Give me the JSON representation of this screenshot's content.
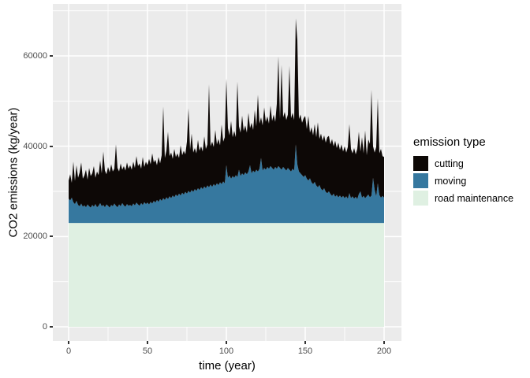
{
  "figure": {
    "background": "#ffffff"
  },
  "panel": {
    "background": "#ebebeb",
    "grid_color": "#ffffff"
  },
  "axes": {
    "x": {
      "title": "time (year)",
      "tick_labels": [
        "0",
        "50",
        "100",
        "150",
        "200"
      ],
      "tick_values": [
        0,
        50,
        100,
        150,
        200
      ],
      "minor_tick_values": [
        25,
        75,
        125,
        175
      ],
      "text_color": "#4d4d4d"
    },
    "y": {
      "title": "CO2 emissions (kg/year)",
      "tick_labels": [
        "0",
        "20000",
        "40000",
        "60000"
      ],
      "tick_values": [
        0,
        20000,
        40000,
        60000
      ],
      "minor_tick_values": [
        10000,
        30000,
        50000,
        70000
      ],
      "text_color": "#4d4d4d"
    }
  },
  "legend": {
    "title": "emission type",
    "entries": [
      {
        "label": "cutting",
        "color": "#0d0806"
      },
      {
        "label": "moving",
        "color": "#36789f"
      },
      {
        "label": "road maintenance",
        "color": "#dff0e2"
      }
    ]
  },
  "chart_data": {
    "type": "area",
    "stacked": true,
    "title": "",
    "xlabel": "time (year)",
    "ylabel": "CO2 emissions (kg/year)",
    "units": "kg/year",
    "grid": true,
    "legend_position": "right",
    "xlim": [
      -10,
      211
    ],
    "ylim": [
      -3500,
      71800
    ],
    "x_start": 0,
    "x_step": 1,
    "x_end": 200,
    "series_order_top_to_bottom": [
      "cutting",
      "moving",
      "road maintenance"
    ],
    "note": "Values are stacked cumulative tops in kg/year read from the plot: road maintenance spans 0..23000 (constant); moving spans 23000..moving_top[t]; cutting spans moving_top[t]..cutting_top[t]. Max total ~68300 at t=144.",
    "road_maintenance_top": 23000,
    "moving_top": [
      28400,
      28000,
      28600,
      27600,
      27200,
      27900,
      27000,
      26700,
      27300,
      26600,
      26900,
      26500,
      27100,
      26700,
      26400,
      27000,
      26600,
      27200,
      26500,
      26800,
      27400,
      26700,
      27000,
      26500,
      27100,
      26800,
      26400,
      27000,
      26700,
      27300,
      26800,
      26500,
      27100,
      26700,
      27400,
      26900,
      26600,
      27200,
      26800,
      27000,
      26700,
      27300,
      26900,
      27500,
      27100,
      26800,
      27400,
      27000,
      27600,
      27200,
      27500,
      27100,
      27700,
      27300,
      27900,
      27500,
      28100,
      27700,
      28300,
      27900,
      28500,
      28100,
      28700,
      28300,
      28900,
      28500,
      29100,
      28700,
      29300,
      28900,
      29500,
      29100,
      29700,
      29300,
      29900,
      29500,
      30100,
      29700,
      30300,
      29900,
      30500,
      30100,
      30700,
      30300,
      30900,
      30500,
      31100,
      30700,
      31300,
      30900,
      31500,
      31000,
      31600,
      31200,
      31800,
      31400,
      32000,
      31600,
      32200,
      31800,
      35800,
      33000,
      33500,
      32800,
      33400,
      33000,
      33600,
      33200,
      34800,
      33400,
      34000,
      33600,
      34200,
      33800,
      34400,
      35800,
      34000,
      34600,
      34200,
      34800,
      34400,
      35000,
      37400,
      34600,
      35200,
      34800,
      35400,
      35000,
      35600,
      35200,
      34800,
      35400,
      35000,
      35600,
      35200,
      34800,
      35400,
      35000,
      34600,
      35200,
      34800,
      34400,
      35000,
      34600,
      40400,
      36000,
      34400,
      34000,
      33600,
      33200,
      33600,
      32800,
      32400,
      32900,
      32000,
      31600,
      32100,
      31300,
      30900,
      31400,
      30600,
      30200,
      30700,
      29900,
      29600,
      30000,
      29400,
      29000,
      29500,
      28800,
      29200,
      28700,
      29100,
      28600,
      29000,
      28500,
      28900,
      28400,
      29600,
      28500,
      28900,
      28400,
      28800,
      28300,
      29400,
      30000,
      28600,
      29000,
      28500,
      28900,
      29300,
      28700,
      29100,
      33000,
      30400,
      28900,
      31800,
      29200,
      28600,
      29000,
      28600
    ],
    "cutting_top": [
      32400,
      33800,
      31900,
      36600,
      32300,
      35800,
      33000,
      34200,
      36400,
      32800,
      33500,
      34800,
      32600,
      35200,
      33400,
      34000,
      35600,
      33000,
      34400,
      33600,
      36800,
      34000,
      38800,
      34600,
      33800,
      35400,
      34200,
      36000,
      34400,
      35000,
      40400,
      35200,
      34400,
      36200,
      34800,
      35600,
      34600,
      36400,
      35000,
      35800,
      34800,
      36600,
      35200,
      37800,
      35600,
      36200,
      35000,
      37600,
      35400,
      36600,
      35800,
      37200,
      36000,
      38400,
      36400,
      37000,
      35800,
      37600,
      36200,
      38000,
      48800,
      37400,
      39000,
      43200,
      37800,
      38600,
      37200,
      39400,
      37600,
      38400,
      37400,
      40200,
      38000,
      39000,
      38200,
      41000,
      48400,
      39200,
      42800,
      38600,
      39600,
      38400,
      41400,
      39000,
      40000,
      38800,
      42200,
      39400,
      40400,
      53700,
      40000,
      41000,
      39800,
      43600,
      40400,
      41600,
      40200,
      44800,
      41000,
      42000,
      55000,
      44000,
      42400,
      45600,
      42000,
      43400,
      42000,
      54300,
      44400,
      43000,
      46800,
      43400,
      44600,
      43000,
      47400,
      44000,
      45200,
      43600,
      48000,
      44400,
      51400,
      45000,
      46400,
      44600,
      48600,
      45400,
      46600,
      45000,
      49000,
      45600,
      47000,
      45400,
      49400,
      59900,
      46000,
      58000,
      46400,
      47600,
      45800,
      47000,
      57800,
      46200,
      47400,
      45800,
      68300,
      63500,
      46000,
      47000,
      45200,
      46200,
      46700,
      43800,
      46700,
      43000,
      44200,
      42400,
      44900,
      42000,
      45300,
      41600,
      42800,
      41200,
      42400,
      40800,
      42000,
      42300,
      40400,
      41600,
      40000,
      41200,
      39600,
      40800,
      39200,
      40400,
      38800,
      40000,
      38600,
      39800,
      44900,
      39400,
      38400,
      39600,
      38200,
      39400,
      43200,
      38800,
      42000,
      38400,
      43500,
      38000,
      41500,
      40500,
      52500,
      40000,
      38600,
      39800,
      50600,
      38400,
      39400,
      37800,
      37600
    ]
  }
}
